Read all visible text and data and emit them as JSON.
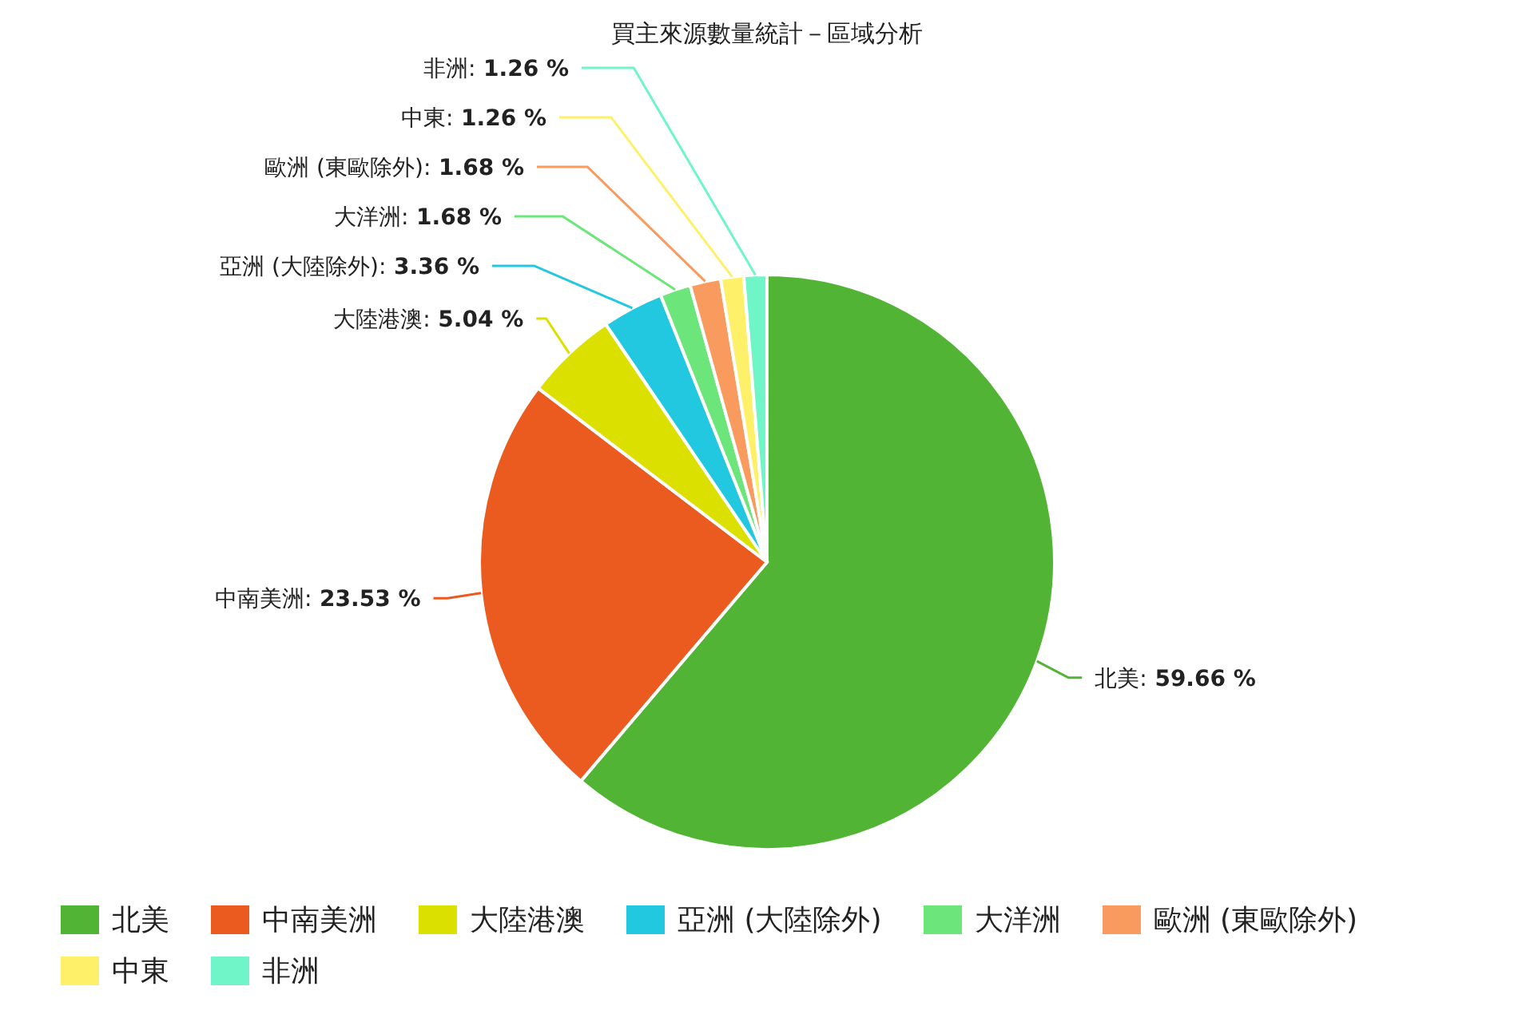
{
  "chart_data": {
    "type": "pie",
    "title": "買主來源數量統計－區域分析",
    "categories": [
      "北美",
      "中南美洲",
      "大陸港澳",
      "亞洲 (大陸除外)",
      "大洋洲",
      "歐洲 (東歐除外)",
      "中東",
      "非洲"
    ],
    "values": [
      59.66,
      23.53,
      5.04,
      3.36,
      1.68,
      1.68,
      1.26,
      1.26
    ],
    "value_labels": [
      "北美: 59.66 %",
      "中南美洲: 23.53 %",
      "大陸港澳: 5.04 %",
      "亞洲 (大陸除外): 3.36 %",
      "大洋洲: 1.68 %",
      "歐洲 (東歐除外): 1.68 %",
      "中東: 1.26 %",
      "非洲: 1.26 %"
    ],
    "colors": [
      "#52b435",
      "#eb5a1e",
      "#dbe000",
      "#22c8e0",
      "#6ce57a",
      "#f99a5e",
      "#fff06a",
      "#6ff5c8"
    ],
    "legend": "bottom"
  }
}
